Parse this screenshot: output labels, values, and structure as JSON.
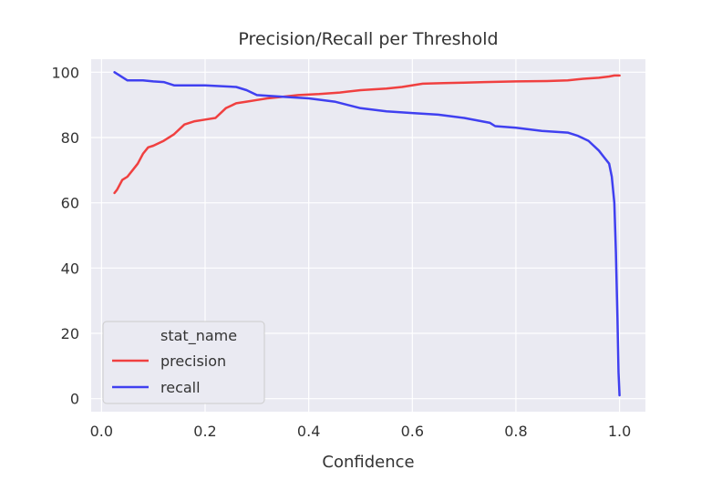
{
  "chart_data": {
    "type": "line",
    "title": "Precision/Recall per Threshold",
    "xlabel": "Confidence",
    "ylabel": "",
    "xlim": [
      -0.02,
      1.05
    ],
    "ylim": [
      -4,
      104
    ],
    "xticks": [
      0.0,
      0.2,
      0.4,
      0.6,
      0.8,
      1.0
    ],
    "xtick_labels": [
      "0.0",
      "0.2",
      "0.4",
      "0.6",
      "0.8",
      "1.0"
    ],
    "yticks": [
      0,
      20,
      40,
      60,
      80,
      100
    ],
    "ytick_labels": [
      "0",
      "20",
      "40",
      "60",
      "80",
      "100"
    ],
    "grid": true,
    "background": "#eaeaf2",
    "legend": {
      "title": "stat_name",
      "placement": "lower-left"
    },
    "series": [
      {
        "name": "precision",
        "color": "#f04040",
        "x": [
          0.025,
          0.03,
          0.04,
          0.05,
          0.06,
          0.07,
          0.08,
          0.09,
          0.1,
          0.12,
          0.14,
          0.16,
          0.18,
          0.2,
          0.22,
          0.24,
          0.26,
          0.28,
          0.3,
          0.32,
          0.35,
          0.38,
          0.42,
          0.46,
          0.5,
          0.55,
          0.58,
          0.62,
          0.66,
          0.7,
          0.74,
          0.8,
          0.86,
          0.9,
          0.93,
          0.96,
          0.98,
          0.99,
          1.0
        ],
        "y": [
          63,
          64,
          67,
          68,
          70,
          72,
          75,
          77,
          77.5,
          79,
          81,
          84,
          85,
          85.5,
          86,
          89,
          90.5,
          91,
          91.5,
          92,
          92.5,
          93,
          93.3,
          93.8,
          94.5,
          95,
          95.5,
          96.5,
          96.7,
          96.8,
          97,
          97.2,
          97.3,
          97.5,
          98,
          98.3,
          98.7,
          99,
          99
        ]
      },
      {
        "name": "recall",
        "color": "#4040f0",
        "x": [
          0.025,
          0.03,
          0.04,
          0.05,
          0.08,
          0.1,
          0.12,
          0.14,
          0.2,
          0.26,
          0.28,
          0.3,
          0.35,
          0.4,
          0.45,
          0.5,
          0.55,
          0.6,
          0.65,
          0.7,
          0.75,
          0.76,
          0.8,
          0.85,
          0.9,
          0.92,
          0.94,
          0.96,
          0.97,
          0.98,
          0.985,
          0.99,
          0.993,
          0.996,
          0.998,
          1.0
        ],
        "y": [
          100,
          99.5,
          98.5,
          97.5,
          97.5,
          97.2,
          97,
          96,
          96,
          95.5,
          94.5,
          93,
          92.5,
          92,
          91,
          89,
          88,
          87.5,
          87,
          86,
          84.5,
          83.5,
          83,
          82,
          81.5,
          80.5,
          79,
          76,
          74,
          72,
          68,
          60,
          45,
          25,
          8,
          1
        ]
      }
    ]
  }
}
